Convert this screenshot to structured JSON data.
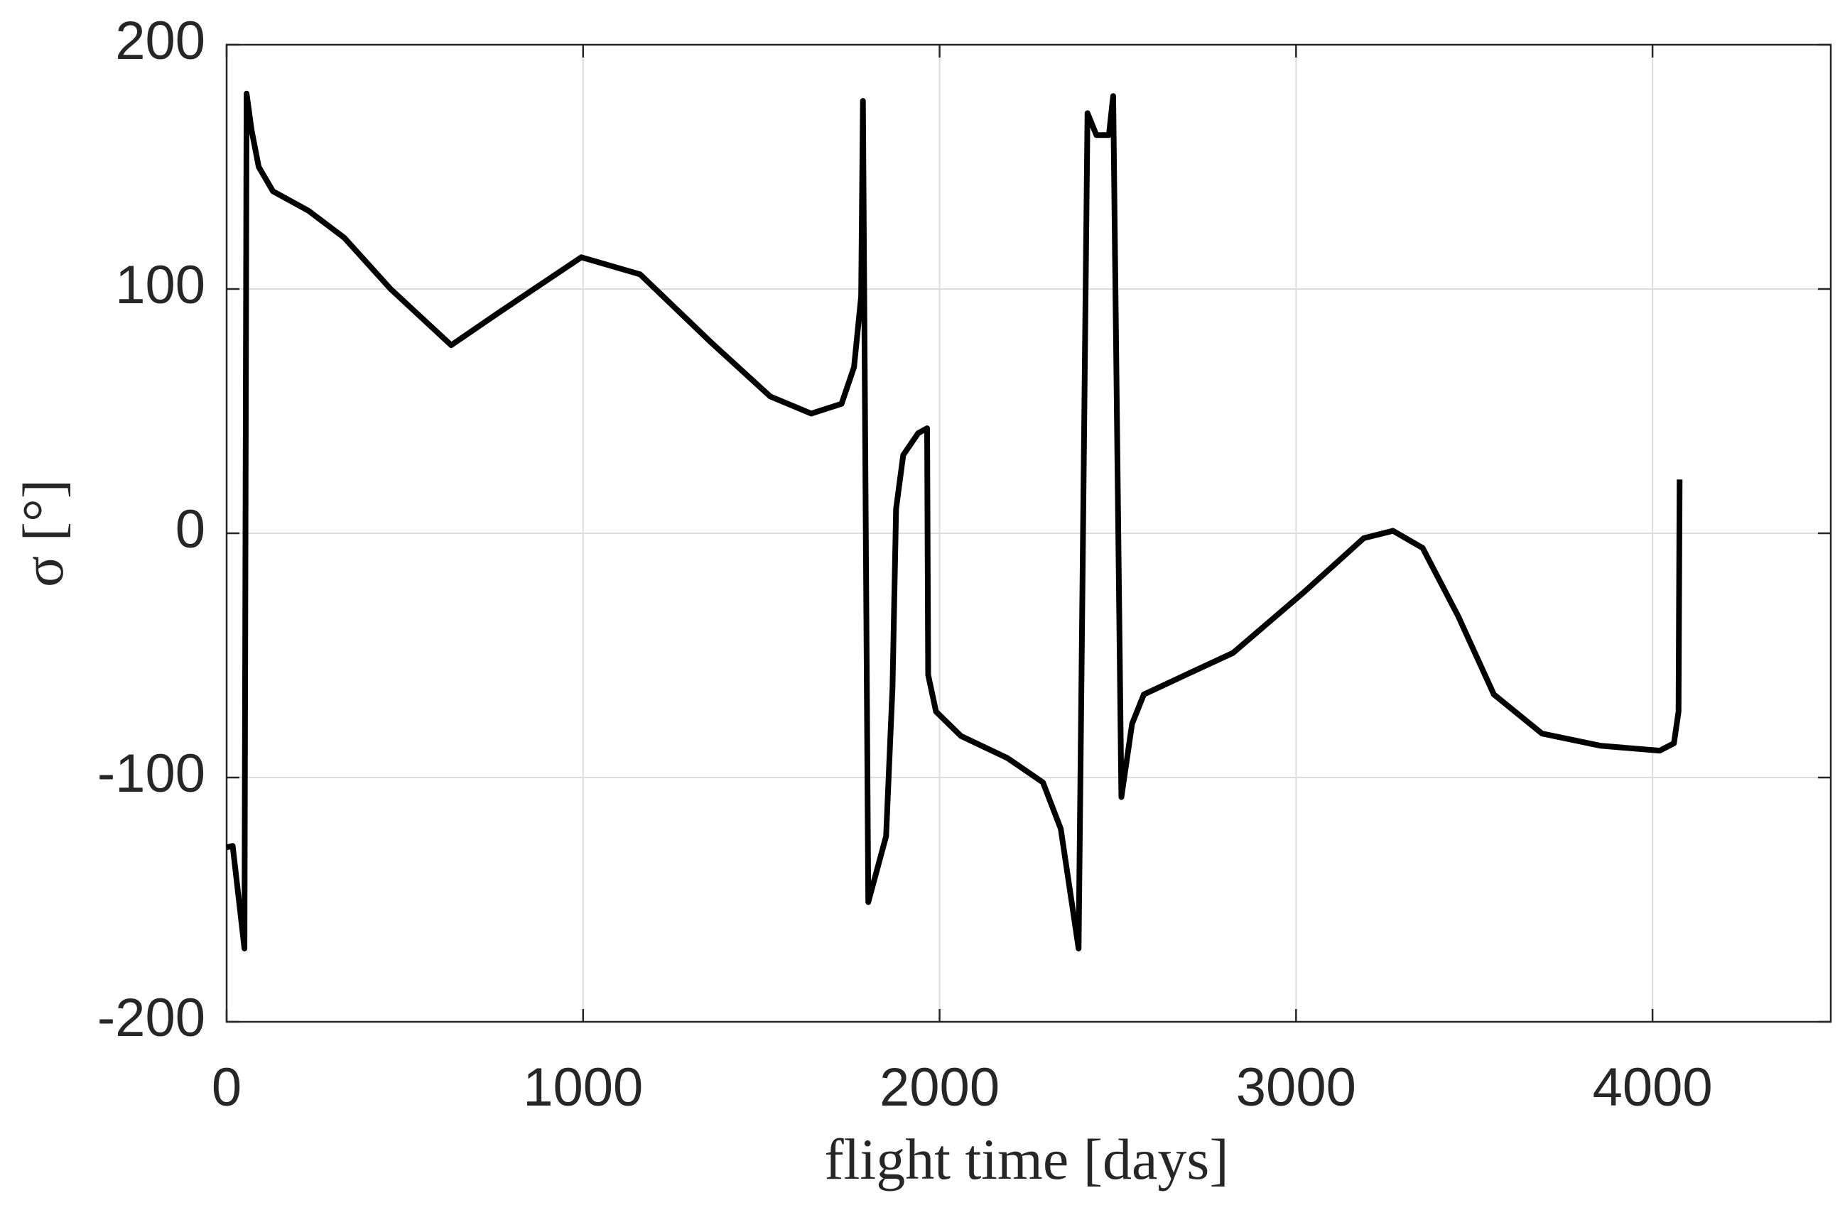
{
  "chart_data": {
    "type": "line",
    "xlabel": "flight time [days]",
    "ylabel": "σ [°]",
    "xlim": [
      0,
      4500
    ],
    "ylim": [
      -200,
      200
    ],
    "xticks": [
      0,
      1000,
      2000,
      3000,
      4000
    ],
    "yticks": [
      -200,
      -100,
      0,
      100,
      200
    ],
    "grid": true,
    "series": [
      {
        "color": "#000000",
        "x": [
          0,
          17,
          50,
          56,
          70,
          90,
          130,
          230,
          330,
          460,
          630,
          760,
          995,
          1160,
          1360,
          1525,
          1640,
          1725,
          1760,
          1780,
          1785,
          1800,
          1850,
          1868,
          1878,
          1898,
          1940,
          1965,
          1968,
          1990,
          2060,
          2190,
          2290,
          2340,
          2390,
          2415,
          2440,
          2475,
          2487,
          2510,
          2540,
          2573,
          2690,
          2823,
          3023,
          3190,
          3272,
          3355,
          3455,
          3555,
          3690,
          3855,
          4020,
          4060,
          4073,
          4076
        ],
        "values": [
          -128.6,
          -128,
          -170,
          180,
          165,
          150,
          140,
          132,
          121,
          100,
          77,
          90,
          113,
          106,
          78,
          56,
          49,
          53,
          68,
          97,
          177,
          -151,
          -124,
          -63,
          10,
          32,
          41,
          43,
          -58,
          -73,
          -83,
          -92,
          -102,
          -121,
          -170,
          172,
          163,
          163,
          179,
          -108,
          -78,
          -66,
          -58,
          -49,
          -24,
          -2,
          1,
          -6,
          -34,
          -66,
          -82,
          -87,
          -89,
          -86,
          -73,
          22
        ]
      }
    ]
  }
}
